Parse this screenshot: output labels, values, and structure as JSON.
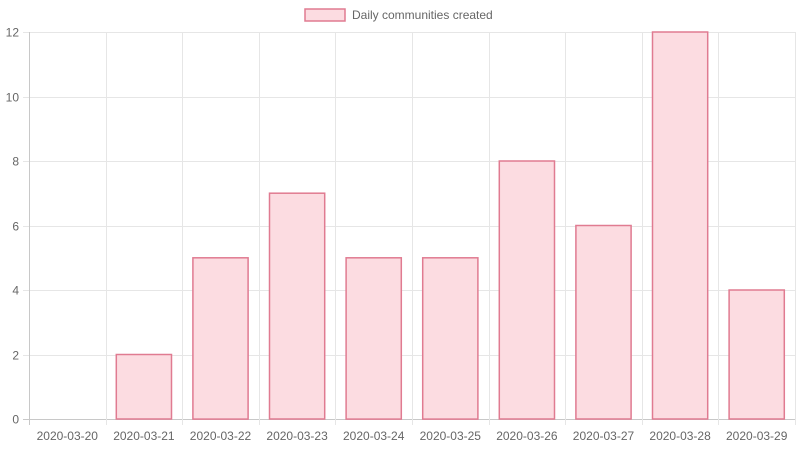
{
  "chart_data": {
    "type": "bar",
    "categories": [
      "2020-03-20",
      "2020-03-21",
      "2020-03-22",
      "2020-03-23",
      "2020-03-24",
      "2020-03-25",
      "2020-03-26",
      "2020-03-27",
      "2020-03-28",
      "2020-03-29"
    ],
    "series": [
      {
        "name": "Daily communities created",
        "values": [
          0,
          2,
          5,
          7,
          5,
          5,
          8,
          6,
          12,
          4
        ]
      }
    ],
    "ylim": [
      0,
      12
    ],
    "yticks": [
      0,
      2,
      4,
      6,
      8,
      10,
      12
    ],
    "grid": true,
    "legend_position": "top-center",
    "colors": {
      "bar_fill": "#fcdce1",
      "bar_stroke": "#e07b91",
      "grid": "#e6e6e6",
      "axis": "#c8c8c8",
      "text": "#666666"
    }
  }
}
